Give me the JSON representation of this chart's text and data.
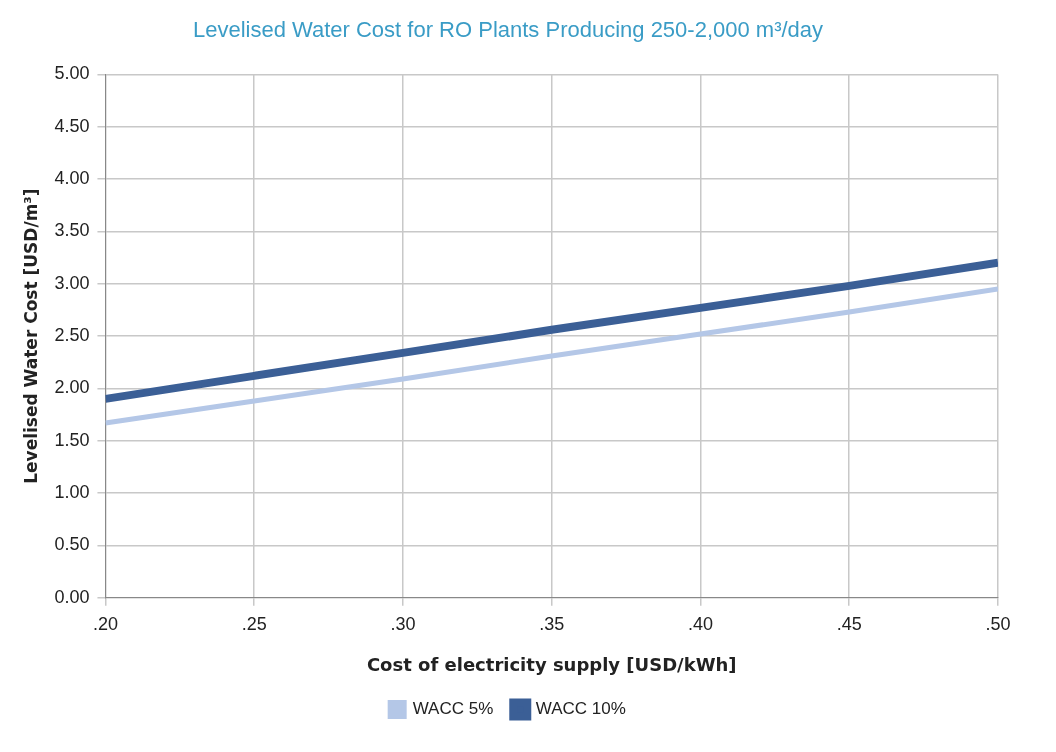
{
  "chart_data": {
    "type": "line",
    "title": "Levelised Water Cost for RO Plants Producing 250-2,000 m³/day",
    "xlabel": "Cost of electricity supply [USD/kWh]",
    "ylabel": "Levelised Water Cost [USD/m³]",
    "x": [
      0.2,
      0.25,
      0.3,
      0.35,
      0.4,
      0.45,
      0.5
    ],
    "series": [
      {
        "name": "WACC 5%",
        "color": "#b4c7e7",
        "values": [
          1.67,
          1.88,
          2.09,
          2.31,
          2.52,
          2.73,
          2.95
        ]
      },
      {
        "name": "WACC 10%",
        "color": "#3b5f96",
        "values": [
          1.9,
          2.12,
          2.34,
          2.56,
          2.77,
          2.98,
          3.2
        ]
      }
    ],
    "xlim": [
      0.2,
      0.5
    ],
    "xticks": [
      {
        "value": 0.2,
        "label": ".20"
      },
      {
        "value": 0.25,
        "label": ".25"
      },
      {
        "value": 0.3,
        "label": ".30"
      },
      {
        "value": 0.35,
        "label": ".35"
      },
      {
        "value": 0.4,
        "label": ".40"
      },
      {
        "value": 0.45,
        "label": ".45"
      },
      {
        "value": 0.5,
        "label": ".50"
      }
    ],
    "ylim": [
      0,
      5
    ],
    "yticks": [
      {
        "value": 0,
        "label": "0.00"
      },
      {
        "value": 0.5,
        "label": "0.50"
      },
      {
        "value": 1,
        "label": "1.00"
      },
      {
        "value": 1.5,
        "label": "1.50"
      },
      {
        "value": 2,
        "label": "2.00"
      },
      {
        "value": 2.5,
        "label": "2.50"
      },
      {
        "value": 3,
        "label": "3.00"
      },
      {
        "value": 3.5,
        "label": "3.50"
      },
      {
        "value": 4,
        "label": "4.00"
      },
      {
        "value": 4.5,
        "label": "4.50"
      },
      {
        "value": 5,
        "label": "5.00"
      }
    ],
    "grid": true,
    "legend": "bottom",
    "marker": "none",
    "line_style": "solid"
  }
}
